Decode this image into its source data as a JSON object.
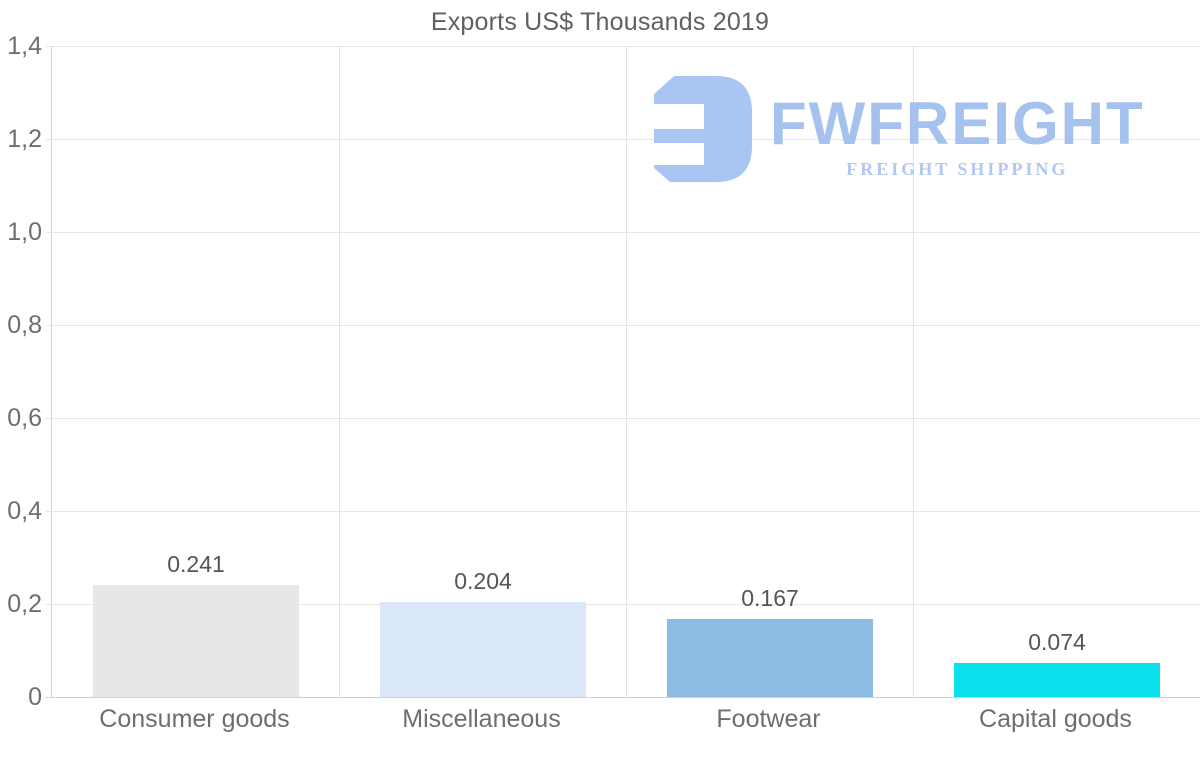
{
  "chart_data": {
    "type": "bar",
    "title": "Exports US$ Thousands 2019",
    "categories": [
      "Consumer goods",
      "Miscellaneous",
      "Footwear",
      "Capital goods"
    ],
    "values": [
      0.241,
      0.204,
      0.167,
      0.074
    ],
    "value_labels": [
      "0.241",
      "0.204",
      "0.167",
      "0.074"
    ],
    "bar_colors": [
      "#e7e7e7",
      "#d9e7f8",
      "#8dbbe3",
      "#0adfec"
    ],
    "xlabel": "",
    "ylabel": "",
    "ylim": [
      0,
      1.4
    ],
    "ytick_step": 0.2,
    "ytick_labels": [
      "0",
      "0,2",
      "0,4",
      "0,6",
      "0,8",
      "1,0",
      "1,2",
      "1,4"
    ],
    "grid": true,
    "legend": false
  },
  "watermark": {
    "brand": "FWFREIGHT",
    "tagline": "FREIGHT SHIPPING",
    "icon": "fwfreight-monogram-icon",
    "brand_color": "#a5c1ee",
    "tagline_color": "#b2c7f1",
    "icon_color": "#a9c5f2"
  },
  "colors": {
    "background": "#ffffff",
    "title_text": "#606060",
    "axis_label_text": "#6e6e6e",
    "value_label_text": "#555555",
    "gridline": "#e7e7e7",
    "axis_line": "#cfcfcf"
  }
}
